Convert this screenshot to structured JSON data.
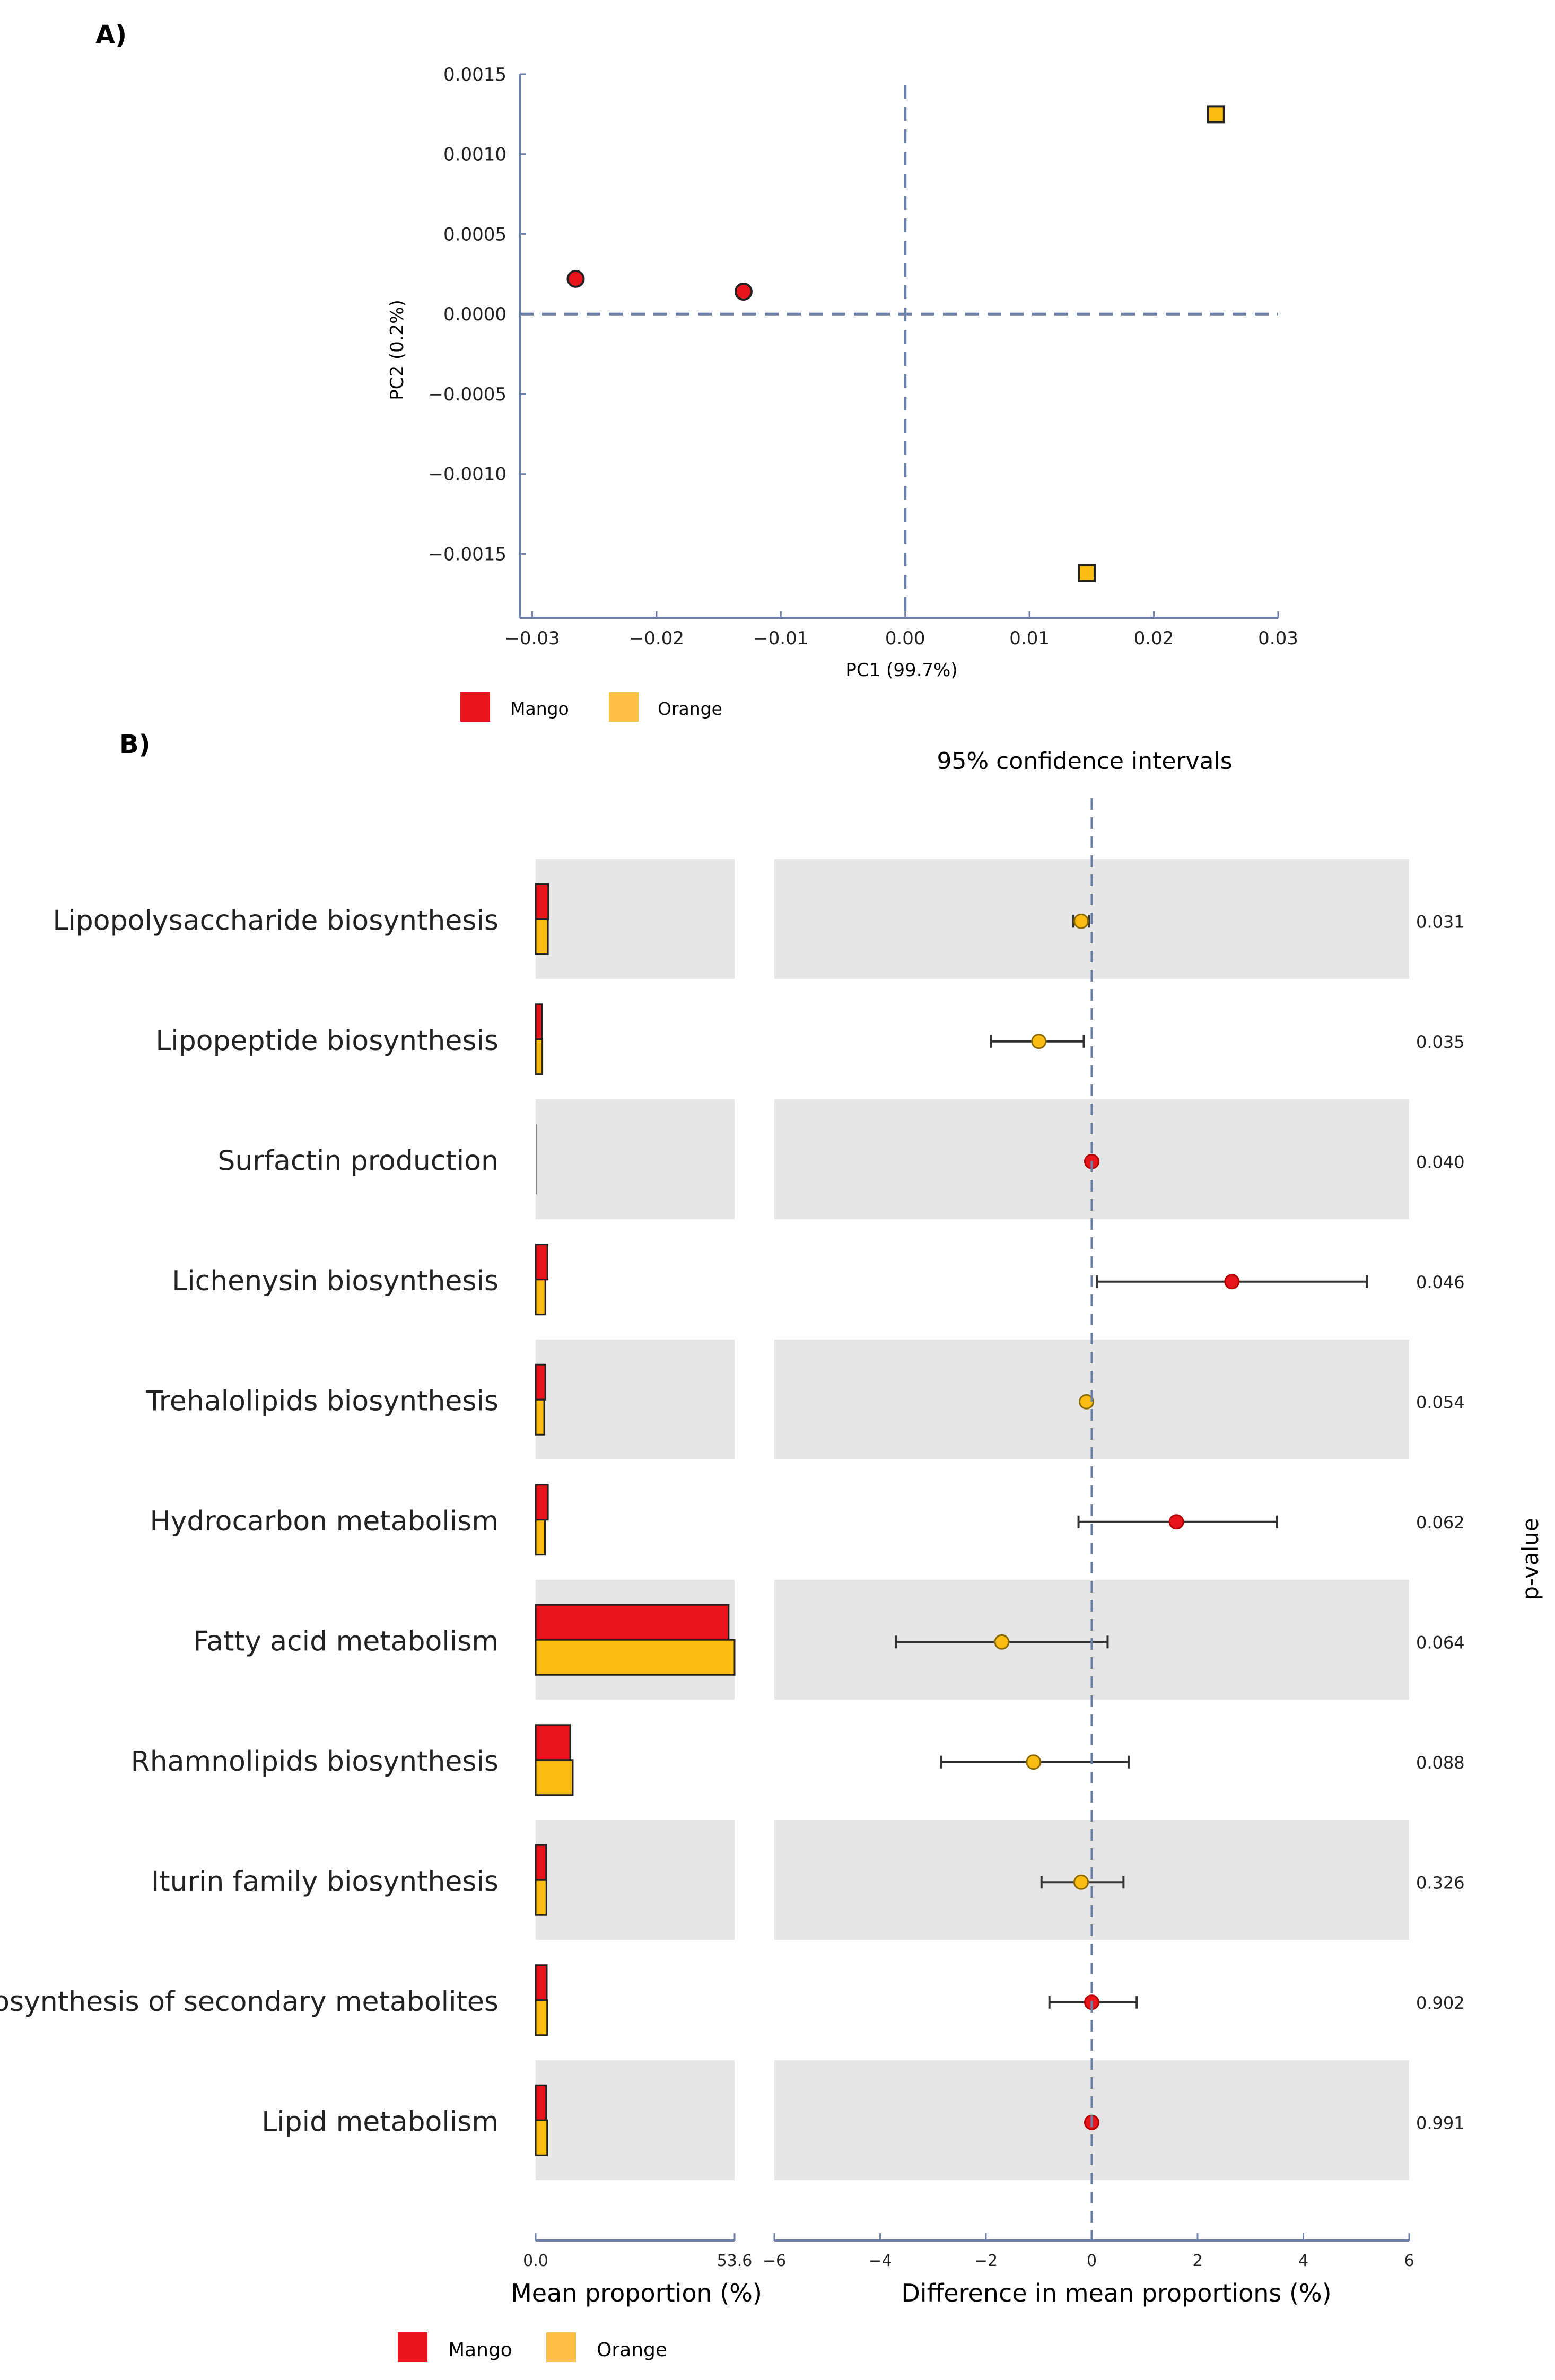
{
  "chart_data": [
    {
      "panel": "A)",
      "type": "scatter",
      "xlabel": "PC1 (99.7%)",
      "ylabel": "PC2 (0.2%)",
      "xlim": [
        -0.031,
        0.03
      ],
      "ylim": [
        -0.0019,
        0.0015
      ],
      "xticks": [
        -0.03,
        -0.02,
        -0.01,
        0.0,
        0.01,
        0.02,
        0.03
      ],
      "xtick_labels": [
        "−0.03",
        "−0.02",
        "−0.01",
        "0.00",
        "0.01",
        "0.02",
        "0.03"
      ],
      "yticks": [
        0.0015,
        0.001,
        0.0005,
        0.0,
        -0.0005,
        -0.001,
        -0.0015
      ],
      "ytick_labels": [
        "0.0015",
        "0.0010",
        "0.0005",
        "0.0000",
        "−0.0005",
        "−0.0010",
        "−0.0015"
      ],
      "series": [
        {
          "name": "Mango",
          "marker": "circle",
          "color": "#e8141c",
          "points": [
            {
              "x": -0.0265,
              "y": 0.00022
            },
            {
              "x": -0.013,
              "y": 0.00014
            }
          ]
        },
        {
          "name": "Orange",
          "marker": "square",
          "color": "#fbbd14",
          "points": [
            {
              "x": 0.025,
              "y": 0.00125
            },
            {
              "x": 0.0146,
              "y": -0.00162
            }
          ]
        }
      ],
      "reference_lines": {
        "x": 0,
        "y": 0
      },
      "legend": [
        {
          "label": "Mango",
          "color": "#e8141c"
        },
        {
          "label": "Orange",
          "color": "#fdbf44"
        }
      ]
    },
    {
      "panel": "B)",
      "type": "bar+errorbar",
      "title": "95% confidence intervals",
      "bar_xlabel": "Mean proportion (%)",
      "bar_xlim": [
        0,
        53.6
      ],
      "bar_tick_labels": [
        "0.0",
        "53.6"
      ],
      "diff_xlabel": "Difference in mean proportions (%)",
      "diff_xlim": [
        -6,
        6
      ],
      "diff_ticks": [
        -6,
        -4,
        -2,
        0,
        2,
        4,
        6
      ],
      "diff_tick_labels": [
        "−6",
        "−4",
        "−2",
        "0",
        "2",
        "4",
        "6"
      ],
      "right_axis_label": "p-value",
      "categories": [
        "Lipopolysaccharide biosynthesis",
        "Lipopeptide biosynthesis",
        "Surfactin production",
        "Lichenysin biosynthesis",
        "Trehalolipids biosynthesis",
        "Hydrocarbon metabolism",
        "Fatty acid metabolism",
        "Rhamnolipids biosynthesis",
        "Iturin family biosynthesis",
        "Biosynthesis of secondary metabolites",
        "Lipid metabolism"
      ],
      "series": [
        {
          "name": "Mango",
          "color": "#e8141c",
          "values": [
            3.4,
            1.7,
            0.3,
            3.2,
            2.6,
            3.3,
            52.0,
            9.3,
            2.8,
            3.0,
            2.8
          ]
        },
        {
          "name": "Orange",
          "color": "#fbbd14",
          "values": [
            3.3,
            1.8,
            0.3,
            2.6,
            2.3,
            2.5,
            53.6,
            10.0,
            2.9,
            3.1,
            3.1
          ]
        }
      ],
      "differences": [
        {
          "value": -0.2,
          "ci": [
            -0.35,
            -0.05
          ],
          "favors": "Orange"
        },
        {
          "value": -1.0,
          "ci": [
            -1.9,
            -0.15
          ],
          "favors": "Orange"
        },
        {
          "value": 0.0,
          "ci": [
            0.0,
            0.0
          ],
          "favors": "Mango"
        },
        {
          "value": 2.65,
          "ci": [
            0.1,
            5.2
          ],
          "favors": "Mango"
        },
        {
          "value": -0.1,
          "ci": [
            -0.15,
            -0.05
          ],
          "favors": "Orange"
        },
        {
          "value": 1.6,
          "ci": [
            -0.25,
            3.5
          ],
          "favors": "Mango"
        },
        {
          "value": -1.7,
          "ci": [
            -3.7,
            0.3
          ],
          "favors": "Orange"
        },
        {
          "value": -1.1,
          "ci": [
            -2.85,
            0.7
          ],
          "favors": "Orange"
        },
        {
          "value": -0.2,
          "ci": [
            -0.95,
            0.6
          ],
          "favors": "Orange"
        },
        {
          "value": 0.0,
          "ci": [
            -0.8,
            0.85
          ],
          "favors": "Mango"
        },
        {
          "value": 0.0,
          "ci": [
            0.0,
            0.0
          ],
          "favors": "Mango"
        }
      ],
      "p_values": [
        "0.031",
        "0.035",
        "0.040",
        "0.046",
        "0.054",
        "0.062",
        "0.064",
        "0.088",
        "0.326",
        "0.902",
        "0.991"
      ],
      "legend": [
        {
          "label": "Mango",
          "color": "#e8141c"
        },
        {
          "label": "Orange",
          "color": "#fdbf44"
        }
      ]
    }
  ]
}
